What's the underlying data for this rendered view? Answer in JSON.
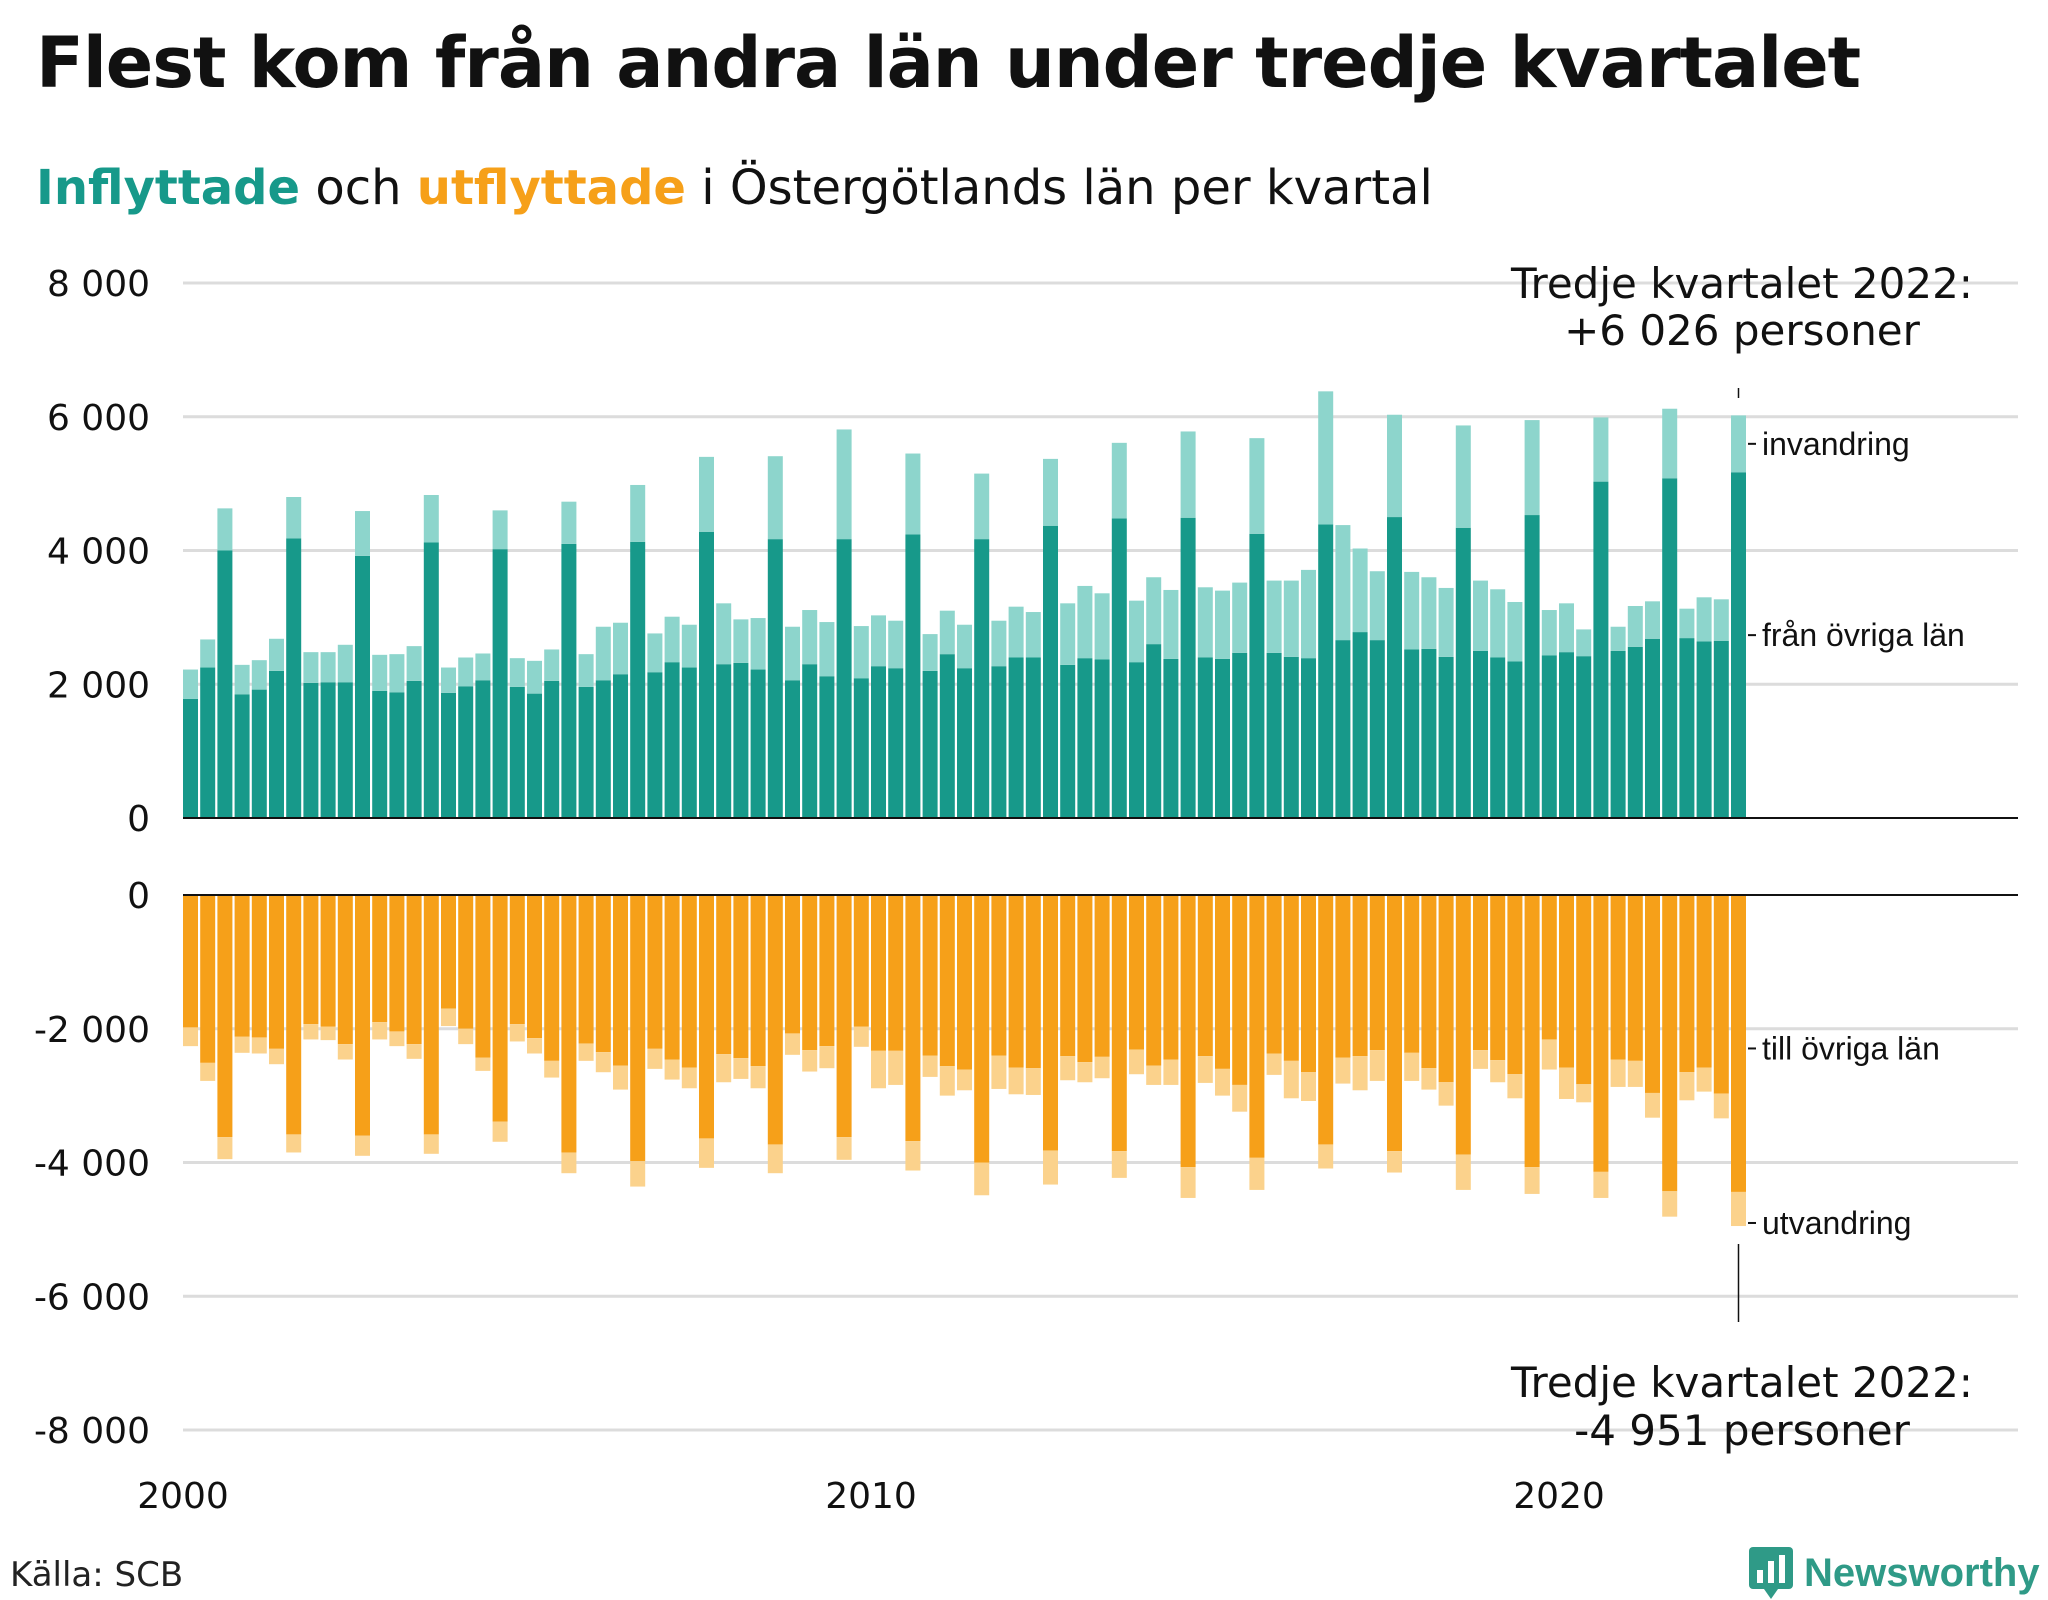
{
  "title": "Flest kom från andra län under tredje kvartalet",
  "subtitle": {
    "in_word": "Inflyttade",
    "and_word": " och ",
    "out_word": "utflyttade",
    "rest": " i Östergötlands län per kvartal"
  },
  "colors": {
    "in_domestic": "#17998a",
    "in_immigration": "#8dd5cc",
    "out_domestic": "#f6a019",
    "out_emigration": "#fbd28c",
    "grid": "#dcdcdc",
    "axis": "#111111"
  },
  "source": "Källa: SCB",
  "logo": {
    "text": "Newsworthy",
    "icon": "bar-chart-bubble-icon"
  },
  "chart_data": {
    "type": "bar",
    "stacked": true,
    "grid": true,
    "x_tick_labels": [
      "2000",
      "2010",
      "2020"
    ],
    "panels": [
      {
        "name": "inflyttade",
        "ylim": [
          0,
          8000
        ],
        "y_ticks": [
          0,
          2000,
          4000,
          6000,
          8000
        ],
        "y_tick_labels": [
          "0",
          "2 000",
          "4 000",
          "6 000",
          "8 000"
        ],
        "series_labels": [
          "från övriga län",
          "invandring"
        ],
        "annotation": [
          "Tredje kvartalet 2022:",
          "+6 026 personer"
        ]
      },
      {
        "name": "utflyttade",
        "ylim": [
          -8000,
          0
        ],
        "y_ticks": [
          0,
          -2000,
          -4000,
          -6000,
          -8000
        ],
        "y_tick_labels": [
          "0",
          "-2 000",
          "-4 000",
          "-6 000",
          "-8 000"
        ],
        "series_labels": [
          "till övriga län",
          "utvandring"
        ],
        "annotation": [
          "Tredje kvartalet 2022:",
          "-4 951 personer"
        ]
      }
    ],
    "x_start": 2000,
    "quarters_per_year": 4,
    "categories": [
      "2000-Q1",
      "2000-Q2",
      "2000-Q3",
      "2000-Q4",
      "2001-Q1",
      "2001-Q2",
      "2001-Q3",
      "2001-Q4",
      "2002-Q1",
      "2002-Q2",
      "2002-Q3",
      "2002-Q4",
      "2003-Q1",
      "2003-Q2",
      "2003-Q3",
      "2003-Q4",
      "2004-Q1",
      "2004-Q2",
      "2004-Q3",
      "2004-Q4",
      "2005-Q1",
      "2005-Q2",
      "2005-Q3",
      "2005-Q4",
      "2006-Q1",
      "2006-Q2",
      "2006-Q3",
      "2006-Q4",
      "2007-Q1",
      "2007-Q2",
      "2007-Q3",
      "2007-Q4",
      "2008-Q1",
      "2008-Q2",
      "2008-Q3",
      "2008-Q4",
      "2009-Q1",
      "2009-Q2",
      "2009-Q3",
      "2009-Q4",
      "2010-Q1",
      "2010-Q2",
      "2010-Q3",
      "2010-Q4",
      "2011-Q1",
      "2011-Q2",
      "2011-Q3",
      "2011-Q4",
      "2012-Q1",
      "2012-Q2",
      "2012-Q3",
      "2012-Q4",
      "2013-Q1",
      "2013-Q2",
      "2013-Q3",
      "2013-Q4",
      "2014-Q1",
      "2014-Q2",
      "2014-Q3",
      "2014-Q4",
      "2015-Q1",
      "2015-Q2",
      "2015-Q3",
      "2015-Q4",
      "2016-Q1",
      "2016-Q2",
      "2016-Q3",
      "2016-Q4",
      "2017-Q1",
      "2017-Q2",
      "2017-Q3",
      "2017-Q4",
      "2018-Q1",
      "2018-Q2",
      "2018-Q3",
      "2018-Q4",
      "2019-Q1",
      "2019-Q2",
      "2019-Q3",
      "2019-Q4",
      "2020-Q1",
      "2020-Q2",
      "2020-Q3",
      "2020-Q4",
      "2021-Q1",
      "2021-Q2",
      "2021-Q3",
      "2021-Q4",
      "2022-Q1",
      "2022-Q2",
      "2022-Q3"
    ],
    "series": [
      {
        "name": "från övriga län",
        "values": [
          1780,
          2250,
          4000,
          1850,
          1920,
          2200,
          4180,
          2020,
          2030,
          2030,
          3920,
          1900,
          1880,
          2050,
          4120,
          1870,
          1970,
          2060,
          4020,
          1960,
          1860,
          2050,
          4100,
          1960,
          2060,
          2150,
          4130,
          2180,
          2330,
          2250,
          4280,
          2300,
          2320,
          2220,
          4170,
          2060,
          2300,
          2120,
          4170,
          2090,
          2270,
          2240,
          4240,
          2200,
          2450,
          2240,
          4170,
          2270,
          2400,
          2400,
          4370,
          2290,
          2390,
          2370,
          4480,
          2330,
          2600,
          2380,
          4490,
          2400,
          2380,
          2470,
          4250,
          2470,
          2410,
          2390,
          4390,
          2660,
          2780,
          2660,
          4500,
          2520,
          2530,
          2410,
          4340,
          2500,
          2400,
          2340,
          4530,
          2430,
          2480,
          2420,
          5030,
          2500,
          2560,
          2680,
          5080,
          2690,
          2640,
          2650,
          5170
        ]
      },
      {
        "name": "invandring",
        "values": [
          440,
          420,
          630,
          440,
          440,
          480,
          620,
          460,
          450,
          560,
          670,
          540,
          570,
          520,
          710,
          380,
          430,
          400,
          580,
          430,
          490,
          470,
          630,
          490,
          800,
          770,
          850,
          580,
          680,
          640,
          1120,
          910,
          650,
          770,
          1240,
          800,
          810,
          810,
          1640,
          780,
          760,
          710,
          1210,
          550,
          650,
          650,
          980,
          680,
          760,
          680,
          1000,
          920,
          1080,
          990,
          1130,
          920,
          1000,
          1030,
          1290,
          1050,
          1020,
          1050,
          1430,
          1080,
          1140,
          1320,
          1990,
          1720,
          1250,
          1030,
          1530,
          1160,
          1070,
          1030,
          1530,
          1050,
          1020,
          890,
          1420,
          680,
          730,
          400,
          960,
          360,
          610,
          560,
          1040,
          440,
          660,
          620,
          850
        ]
      },
      {
        "name": "till övriga län",
        "values": [
          -1980,
          -2510,
          -3620,
          -2120,
          -2130,
          -2300,
          -3580,
          -1930,
          -1970,
          -2230,
          -3600,
          -1900,
          -2040,
          -2230,
          -3580,
          -1700,
          -2000,
          -2430,
          -3390,
          -1930,
          -2140,
          -2480,
          -3850,
          -2220,
          -2350,
          -2550,
          -3980,
          -2300,
          -2460,
          -2580,
          -3640,
          -2380,
          -2440,
          -2560,
          -3730,
          -2070,
          -2320,
          -2260,
          -3620,
          -1970,
          -2330,
          -2330,
          -3680,
          -2400,
          -2560,
          -2610,
          -4000,
          -2400,
          -2580,
          -2590,
          -3820,
          -2410,
          -2500,
          -2420,
          -3830,
          -2310,
          -2550,
          -2460,
          -4070,
          -2410,
          -2600,
          -2840,
          -3930,
          -2370,
          -2480,
          -2650,
          -3730,
          -2430,
          -2410,
          -2320,
          -3830,
          -2360,
          -2590,
          -2800,
          -3880,
          -2320,
          -2470,
          -2680,
          -4070,
          -2160,
          -2580,
          -2830,
          -4140,
          -2460,
          -2480,
          -2960,
          -4430,
          -2650,
          -2580,
          -2970,
          -4440
        ]
      },
      {
        "name": "utvandring",
        "values": [
          -280,
          -270,
          -330,
          -240,
          -240,
          -230,
          -270,
          -230,
          -200,
          -230,
          -300,
          -260,
          -220,
          -220,
          -290,
          -260,
          -230,
          -200,
          -300,
          -260,
          -230,
          -250,
          -310,
          -260,
          -300,
          -360,
          -380,
          -300,
          -300,
          -310,
          -440,
          -420,
          -310,
          -330,
          -430,
          -320,
          -320,
          -330,
          -340,
          -300,
          -560,
          -510,
          -440,
          -320,
          -440,
          -310,
          -490,
          -500,
          -400,
          -400,
          -510,
          -360,
          -300,
          -320,
          -400,
          -370,
          -290,
          -380,
          -460,
          -400,
          -400,
          -400,
          -480,
          -320,
          -560,
          -430,
          -360,
          -390,
          -510,
          -460,
          -320,
          -420,
          -320,
          -350,
          -530,
          -280,
          -330,
          -360,
          -400,
          -450,
          -470,
          -270,
          -390,
          -410,
          -390,
          -370,
          -380,
          -420,
          -360,
          -370,
          -510
        ]
      }
    ]
  }
}
